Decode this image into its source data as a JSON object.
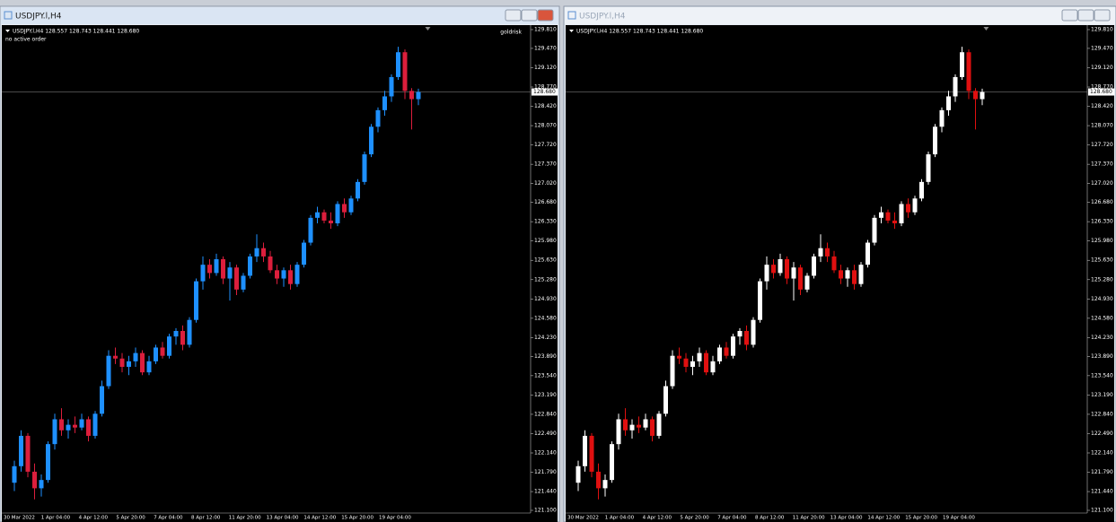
{
  "windows": [
    {
      "title": "USDJPY.l,H4",
      "active": true,
      "symbol_info": "USDJPY.l,H4  128.557 128.743 128.441 128.680",
      "note": "no active order",
      "indicator": "goldrisk",
      "up_color": "#1e90ff",
      "down_color": "#dc1e3c"
    },
    {
      "title": "USDJPY.l,H4",
      "active": false,
      "symbol_info": "USDJPY.l,H4  128.557 128.743 128.441 128.680",
      "up_color": "#ffffff",
      "down_color": "#e01010"
    }
  ],
  "price_axis": {
    "ylim": [
      121.1,
      129.81
    ],
    "ticks": [
      {
        "value": 129.81,
        "label": "129.810"
      },
      {
        "value": 129.47,
        "label": "129.470"
      },
      {
        "value": 129.12,
        "label": "129.120"
      },
      {
        "value": 128.77,
        "label": "128.770"
      },
      {
        "value": 128.42,
        "label": "128.420"
      },
      {
        "value": 128.07,
        "label": "128.070"
      },
      {
        "value": 127.72,
        "label": "127.720"
      },
      {
        "value": 127.37,
        "label": "127.370"
      },
      {
        "value": 127.02,
        "label": "127.020"
      },
      {
        "value": 126.68,
        "label": "126.680"
      },
      {
        "value": 126.33,
        "label": "126.330"
      },
      {
        "value": 125.98,
        "label": "125.980"
      },
      {
        "value": 125.63,
        "label": "125.630"
      },
      {
        "value": 125.28,
        "label": "125.280"
      },
      {
        "value": 124.93,
        "label": "124.930"
      },
      {
        "value": 124.58,
        "label": "124.580"
      },
      {
        "value": 124.23,
        "label": "124.230"
      },
      {
        "value": 123.89,
        "label": "123.890"
      },
      {
        "value": 123.54,
        "label": "123.540"
      },
      {
        "value": 123.19,
        "label": "123.190"
      },
      {
        "value": 122.84,
        "label": "122.840"
      },
      {
        "value": 122.49,
        "label": "122.490"
      },
      {
        "value": 122.14,
        "label": "122.140"
      },
      {
        "value": 121.79,
        "label": "121.790"
      },
      {
        "value": 121.44,
        "label": "121.440"
      },
      {
        "value": 121.1,
        "label": "121.100"
      }
    ],
    "current": {
      "value": 128.68,
      "label": "128.680"
    }
  },
  "time_labels": [
    "30 Mar 2022",
    "1 Apr 04:00",
    "4 Apr 12:00",
    "5 Apr 20:00",
    "7 Apr 04:00",
    "8 Apr 12:00",
    "11 Apr 20:00",
    "13 Apr 04:00",
    "14 Apr 12:00",
    "15 Apr 20:00",
    "19 Apr 04:00"
  ],
  "candles": [
    [
      121.6,
      122.0,
      121.45,
      121.9
    ],
    [
      121.9,
      122.55,
      121.8,
      122.45
    ],
    [
      122.45,
      122.5,
      121.7,
      121.8
    ],
    [
      121.8,
      121.95,
      121.3,
      121.5
    ],
    [
      121.5,
      121.75,
      121.35,
      121.65
    ],
    [
      121.65,
      122.35,
      121.6,
      122.3
    ],
    [
      122.3,
      122.85,
      122.2,
      122.75
    ],
    [
      122.75,
      122.95,
      122.45,
      122.55
    ],
    [
      122.55,
      122.75,
      122.4,
      122.65
    ],
    [
      122.65,
      122.8,
      122.5,
      122.6
    ],
    [
      122.6,
      122.85,
      122.55,
      122.75
    ],
    [
      122.75,
      122.8,
      122.35,
      122.45
    ],
    [
      122.45,
      122.9,
      122.4,
      122.85
    ],
    [
      122.85,
      123.45,
      122.8,
      123.35
    ],
    [
      123.35,
      124.0,
      123.3,
      123.9
    ],
    [
      123.9,
      124.05,
      123.75,
      123.85
    ],
    [
      123.85,
      123.95,
      123.6,
      123.7
    ],
    [
      123.7,
      123.9,
      123.55,
      123.8
    ],
    [
      123.8,
      124.05,
      123.7,
      123.95
    ],
    [
      123.95,
      124.0,
      123.55,
      123.6
    ],
    [
      123.6,
      123.9,
      123.55,
      123.8
    ],
    [
      123.8,
      124.1,
      123.75,
      124.05
    ],
    [
      124.05,
      124.15,
      123.85,
      123.9
    ],
    [
      123.9,
      124.3,
      123.85,
      124.25
    ],
    [
      124.25,
      124.4,
      124.1,
      124.35
    ],
    [
      124.35,
      124.45,
      124.0,
      124.1
    ],
    [
      124.1,
      124.6,
      124.05,
      124.55
    ],
    [
      124.55,
      125.3,
      124.5,
      125.25
    ],
    [
      125.25,
      125.7,
      125.1,
      125.55
    ],
    [
      125.55,
      125.65,
      125.3,
      125.4
    ],
    [
      125.4,
      125.75,
      125.35,
      125.65
    ],
    [
      125.65,
      125.7,
      125.2,
      125.3
    ],
    [
      125.3,
      125.6,
      124.9,
      125.5
    ],
    [
      125.5,
      125.55,
      125.0,
      125.1
    ],
    [
      125.1,
      125.4,
      125.05,
      125.35
    ],
    [
      125.35,
      125.75,
      125.3,
      125.7
    ],
    [
      125.7,
      126.1,
      125.6,
      125.85
    ],
    [
      125.85,
      125.95,
      125.6,
      125.7
    ],
    [
      125.7,
      125.8,
      125.4,
      125.45
    ],
    [
      125.45,
      125.55,
      125.2,
      125.3
    ],
    [
      125.3,
      125.5,
      125.15,
      125.45
    ],
    [
      125.45,
      125.55,
      125.1,
      125.2
    ],
    [
      125.2,
      125.6,
      125.15,
      125.55
    ],
    [
      125.55,
      126.0,
      125.5,
      125.95
    ],
    [
      125.95,
      126.45,
      125.9,
      126.4
    ],
    [
      126.4,
      126.6,
      126.3,
      126.5
    ],
    [
      126.5,
      126.55,
      126.3,
      126.35
    ],
    [
      126.35,
      126.5,
      126.2,
      126.3
    ],
    [
      126.3,
      126.7,
      126.25,
      126.65
    ],
    [
      126.65,
      126.75,
      126.4,
      126.5
    ],
    [
      126.5,
      126.8,
      126.45,
      126.75
    ],
    [
      126.75,
      127.1,
      126.7,
      127.05
    ],
    [
      127.05,
      127.6,
      127.0,
      127.55
    ],
    [
      127.55,
      128.1,
      127.5,
      128.05
    ],
    [
      128.05,
      128.4,
      127.95,
      128.35
    ],
    [
      128.35,
      128.7,
      128.25,
      128.6
    ],
    [
      128.6,
      129.0,
      128.5,
      128.95
    ],
    [
      128.95,
      129.5,
      128.9,
      129.4
    ],
    [
      129.4,
      129.45,
      128.55,
      128.7
    ],
    [
      128.7,
      128.75,
      128.0,
      128.55
    ],
    [
      128.55,
      128.74,
      128.44,
      128.68
    ]
  ]
}
